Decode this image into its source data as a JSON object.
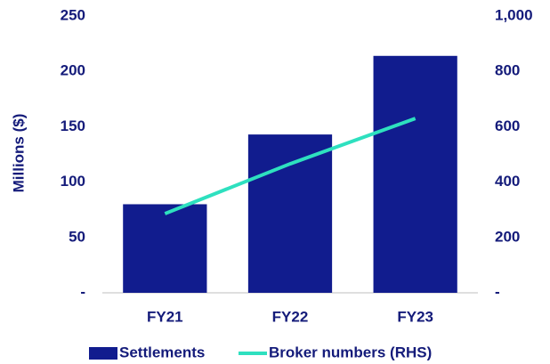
{
  "chart_data": {
    "type": "bar",
    "y_label": "Millions ($)",
    "categories": [
      "FY21",
      "FY22",
      "FY23"
    ],
    "series": [
      {
        "name": "Settlements",
        "type": "bar",
        "color": "#111c8e",
        "values": [
          80,
          143,
          214
        ]
      },
      {
        "name": "Broker numbers (RHS)",
        "type": "line",
        "axis": "y2",
        "color": "#2ee0bf",
        "values": [
          286,
          466,
          630
        ]
      }
    ],
    "ylim": [
      0,
      250
    ],
    "yticks": [
      {
        "value": 0,
        "label": "-"
      },
      50,
      100,
      150,
      200,
      250
    ],
    "y2lim": [
      0,
      1000
    ],
    "y2ticks": [
      {
        "value": 0,
        "label": "-"
      },
      200,
      400,
      600,
      800,
      {
        "value": 1000,
        "label": "1,000"
      }
    ],
    "grid": false,
    "legend": "bottom"
  }
}
